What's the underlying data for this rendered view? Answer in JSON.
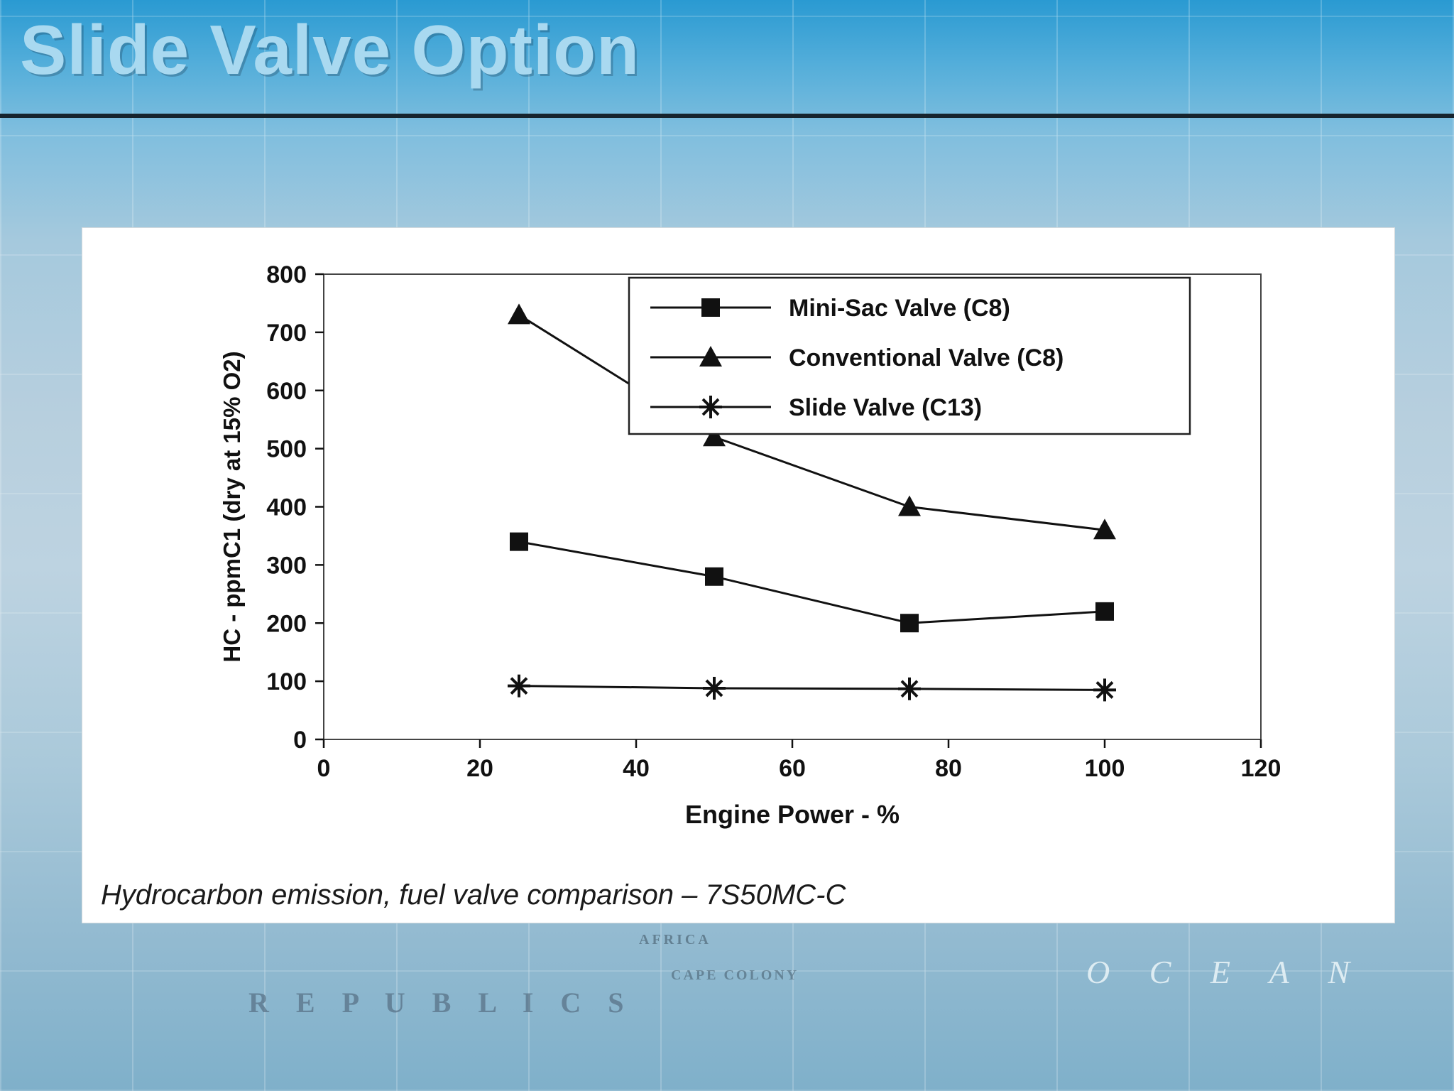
{
  "slide": {
    "title": "Slide Valve Option",
    "caption": "Hydrocarbon emission, fuel valve comparison – 7S50MC-C"
  },
  "background": {
    "map_labels": [
      {
        "text": "R E P U B L I C S"
      },
      {
        "text": "O C E A N"
      },
      {
        "text": "AFRICA"
      },
      {
        "text": "CAPE COLONY"
      }
    ]
  },
  "chart_data": {
    "type": "line",
    "title": "",
    "xlabel": "Engine Power - %",
    "ylabel": "HC - ppmC1 (dry at 15% O2)",
    "x": [
      25,
      50,
      75,
      100
    ],
    "series": [
      {
        "name": "Mini-Sac Valve (C8)",
        "marker": "square",
        "values": [
          340,
          280,
          200,
          220
        ]
      },
      {
        "name": "Conventional Valve (C8)",
        "marker": "triangle",
        "values": [
          730,
          520,
          400,
          360
        ]
      },
      {
        "name": "Slide Valve (C13)",
        "marker": "asterisk",
        "values": [
          92,
          88,
          87,
          85
        ]
      }
    ],
    "xlim": [
      0,
      120
    ],
    "ylim": [
      0,
      800
    ],
    "xticks": [
      0,
      20,
      40,
      60,
      80,
      100,
      120
    ],
    "yticks": [
      0,
      100,
      200,
      300,
      400,
      500,
      600,
      700,
      800
    ],
    "grid": false,
    "legend_position": "top-right",
    "line_color": "#111111"
  },
  "theme": {
    "title_color": "#a9d9f0",
    "rule_color": "#16242e",
    "panel_bg": "#ffffff",
    "chart_text_color": "#111111"
  }
}
